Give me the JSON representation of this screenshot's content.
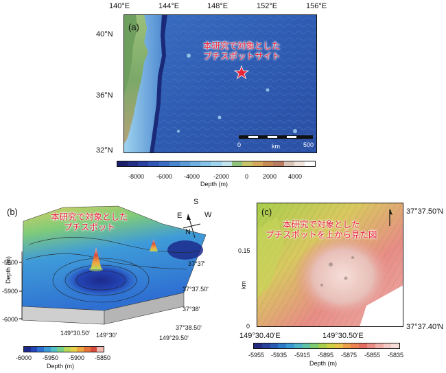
{
  "panel_a": {
    "label": "(a)",
    "lon_ticks": [
      "140°E",
      "144°E",
      "148°E",
      "152°E",
      "156°E"
    ],
    "lat_ticks": [
      "40°N",
      "36°N",
      "32°N"
    ],
    "annotation": [
      "本研究で対象とした",
      "プチスポットサイト"
    ],
    "scalebar": {
      "start": "0",
      "unit": "km",
      "end": "500"
    },
    "colorbar": {
      "ticks": [
        "-8000",
        "-6000",
        "-4000",
        "-2000",
        "0",
        "2000",
        "4000"
      ],
      "label": "Depth (m)",
      "colors": [
        "#1b1f6b",
        "#232f86",
        "#2a40a0",
        "#2f55b6",
        "#3a6cc4",
        "#4a85cf",
        "#5b9bd8",
        "#6fb0e0",
        "#86c3e8",
        "#9fd4ee",
        "#c2e3ee",
        "#8fc27d",
        "#c7c36a",
        "#d4a85a",
        "#c88a55",
        "#b87a60",
        "#d9c3b8",
        "#efe3dc",
        "#ffffff"
      ]
    },
    "star_color": "#e8233a"
  },
  "panel_b": {
    "label": "(b)",
    "annotation": [
      "本研究で対象とした",
      "プチスポット"
    ],
    "compass": {
      "n": "N",
      "s": "S",
      "e": "E",
      "w": "W"
    },
    "depth_axis_title": "Depth (m)",
    "depth_ticks": [
      "-5800",
      "-5900",
      "-6000"
    ],
    "lon_ticks": [
      "149°30.50'",
      "149°30'",
      "149°29.50'"
    ],
    "lat_ticks": [
      "37°37'",
      "37°37.50'",
      "37°38'",
      "37°38.50'"
    ],
    "colorbar": {
      "ticks": [
        "-6000",
        "-5950",
        "-5900",
        "-5850"
      ],
      "label": "Depth (m)",
      "colors": [
        "#1c2a8c",
        "#2446b6",
        "#2e6fd2",
        "#3f9bd8",
        "#54c0c8",
        "#76cf8a",
        "#b8d85a",
        "#e8d24a",
        "#efa740",
        "#e6753c",
        "#d84a3c",
        "#f0b9b0"
      ]
    }
  },
  "panel_c": {
    "label": "(c)",
    "annotation": [
      "本研究で対象とした",
      "プチスポットを上から見た図"
    ],
    "lat_ticks": [
      "37°37.50'N",
      "37°37.40'N"
    ],
    "y_ticks": [
      "0.15",
      "0"
    ],
    "y_axis_title": "km",
    "lon_ticks": [
      "149°30.40'E",
      "149°30.50'E"
    ],
    "colorbar": {
      "ticks": [
        "-5955",
        "-5935",
        "-5915",
        "-5895",
        "-5875",
        "-5855",
        "-5835"
      ],
      "label": "Depth (m)",
      "colors": [
        "#242a80",
        "#27409a",
        "#2b5cb4",
        "#2e7bc8",
        "#3a98d2",
        "#4fb3c8",
        "#5fc2a4",
        "#7fcb72",
        "#a8cf4c",
        "#cfd045",
        "#e8c24a",
        "#eda04c",
        "#ea8350",
        "#e46d62",
        "#e88c86",
        "#f0aeaa",
        "#f4c8c4",
        "#f7ddd8"
      ]
    }
  }
}
